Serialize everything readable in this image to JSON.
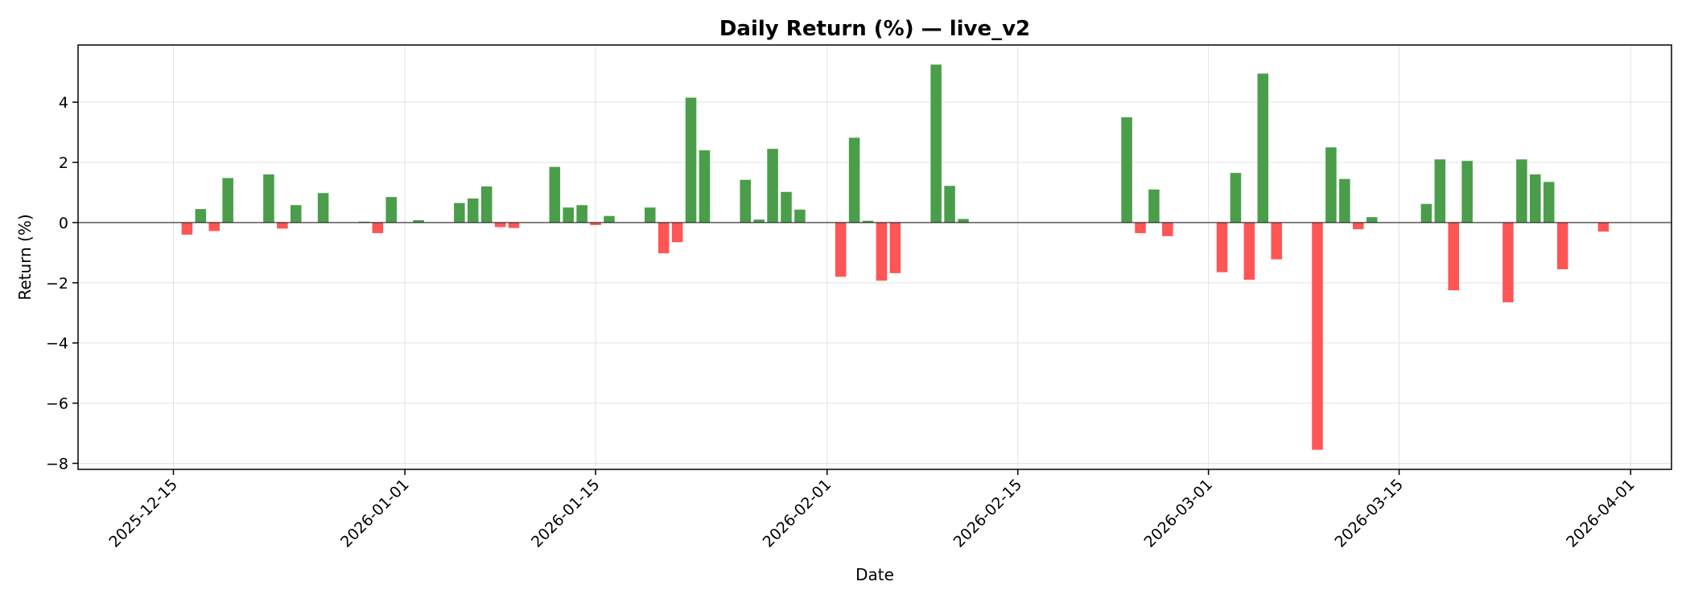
{
  "chart_data": {
    "type": "bar",
    "title": "Daily Return (%) — live_v2",
    "xlabel": "Date",
    "ylabel": "Return (%)",
    "xlim": [
      "2025-12-08",
      "2026-04-04"
    ],
    "ylim": [
      -8.2,
      5.9
    ],
    "x_ticks": [
      "2025-12-15",
      "2026-01-01",
      "2026-01-15",
      "2026-02-01",
      "2026-02-15",
      "2026-03-01",
      "2026-03-15",
      "2026-04-01"
    ],
    "y_ticks": [
      -8,
      -6,
      -4,
      -2,
      0,
      2,
      4
    ],
    "y_tick_labels": [
      "−8",
      "−6",
      "−4",
      "−2",
      "0",
      "2",
      "4"
    ],
    "grid": true,
    "colors": {
      "positive": "#4a9e4a",
      "negative": "#ff5555"
    },
    "series": [
      {
        "x": [
          "2025-12-16",
          "2025-12-17",
          "2025-12-18",
          "2025-12-19",
          "2025-12-22",
          "2025-12-23",
          "2025-12-24",
          "2025-12-26",
          "2025-12-29",
          "2025-12-30",
          "2025-12-31",
          "2026-01-02",
          "2026-01-05",
          "2026-01-06",
          "2026-01-07",
          "2026-01-08",
          "2026-01-09",
          "2026-01-12",
          "2026-01-13",
          "2026-01-14",
          "2026-01-15",
          "2026-01-16",
          "2026-01-19",
          "2026-01-20",
          "2026-01-21",
          "2026-01-22",
          "2026-01-23",
          "2026-01-26",
          "2026-01-27",
          "2026-01-28",
          "2026-01-29",
          "2026-01-30",
          "2026-02-02",
          "2026-02-03",
          "2026-02-04",
          "2026-02-05",
          "2026-02-06",
          "2026-02-09",
          "2026-02-10",
          "2026-02-11",
          "2026-02-23",
          "2026-02-24",
          "2026-02-25",
          "2026-02-26",
          "2026-03-02",
          "2026-03-03",
          "2026-03-04",
          "2026-03-05",
          "2026-03-06",
          "2026-03-09",
          "2026-03-10",
          "2026-03-11",
          "2026-03-12",
          "2026-03-13",
          "2026-03-17",
          "2026-03-18",
          "2026-03-19",
          "2026-03-20",
          "2026-03-23",
          "2026-03-24",
          "2026-03-25",
          "2026-03-26",
          "2026-03-27",
          "2026-03-30"
        ],
        "values": [
          -0.4,
          0.45,
          -0.28,
          1.48,
          1.6,
          -0.2,
          0.58,
          0.98,
          0.03,
          -0.35,
          0.85,
          0.08,
          0.65,
          0.8,
          1.2,
          -0.15,
          -0.18,
          1.85,
          0.5,
          0.58,
          -0.08,
          0.22,
          0.5,
          -1.02,
          -0.65,
          4.15,
          2.4,
          1.42,
          0.1,
          2.45,
          1.02,
          0.43,
          -1.8,
          2.82,
          0.06,
          -1.93,
          -1.68,
          5.25,
          1.22,
          0.12,
          3.5,
          -0.35,
          1.1,
          -0.45,
          -1.65,
          1.65,
          -1.9,
          4.95,
          -1.22,
          -7.55,
          2.5,
          1.45,
          -0.22,
          0.18,
          0.62,
          2.1,
          -2.25,
          2.05,
          -2.65,
          2.1,
          1.6,
          1.35,
          -1.55,
          -0.3
        ]
      }
    ]
  }
}
